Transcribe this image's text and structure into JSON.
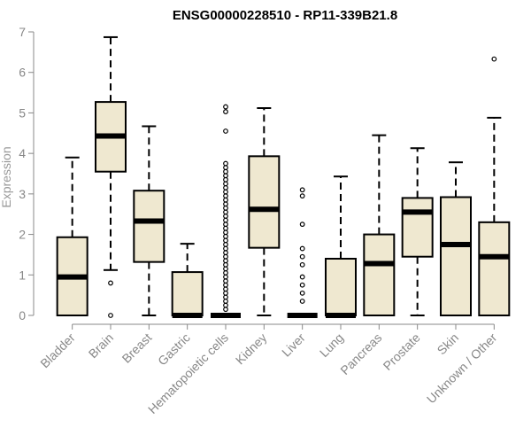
{
  "chart_data": {
    "type": "boxplot",
    "title": "ENSG00000228510 - RP11-339B21.8",
    "xlabel": "",
    "ylabel": "Expression",
    "ylim": [
      0,
      7
    ],
    "yticks": [
      0,
      1,
      2,
      3,
      4,
      5,
      6,
      7
    ],
    "box_fill": "#efe8d0",
    "categories": [
      "Bladder",
      "Brain",
      "Breast",
      "Gastric",
      "Hematopoietic cells",
      "Kidney",
      "Liver",
      "Lung",
      "Pancreas",
      "Prostate",
      "Skin",
      "Unknown / Other"
    ],
    "boxes": [
      {
        "min": 0,
        "q1": 0,
        "median": 0.95,
        "q3": 1.93,
        "max": 3.9,
        "outliers": []
      },
      {
        "min": 1.12,
        "q1": 3.55,
        "median": 4.43,
        "q3": 5.27,
        "max": 6.87,
        "outliers": [
          0.8,
          0
        ]
      },
      {
        "min": 0,
        "q1": 1.32,
        "median": 2.33,
        "q3": 3.08,
        "max": 4.67,
        "outliers": []
      },
      {
        "min": 0,
        "q1": 0,
        "median": 0,
        "q3": 1.07,
        "max": 1.77,
        "outliers": []
      },
      {
        "min": 0,
        "q1": 0,
        "median": 0,
        "q3": 0,
        "max": 0,
        "outliers": [
          5.15,
          5.03,
          4.55,
          3.75,
          3.65,
          3.55,
          3.45,
          3.35,
          3.25,
          3.15,
          3.05,
          2.95,
          2.85,
          2.75,
          2.65,
          2.55,
          2.45,
          2.35,
          2.25,
          2.15,
          2.05,
          1.95,
          1.85,
          1.75,
          1.65,
          1.55,
          1.45,
          1.35,
          1.25,
          1.15,
          1.05,
          0.95,
          0.85,
          0.75,
          0.65,
          0.55,
          0.45,
          0.35,
          0.25,
          0.15
        ]
      },
      {
        "min": 0,
        "q1": 1.67,
        "median": 2.62,
        "q3": 3.93,
        "max": 5.12,
        "outliers": []
      },
      {
        "min": 0,
        "q1": 0,
        "median": 0,
        "q3": 0,
        "max": 0,
        "outliers": [
          3.1,
          2.95,
          2.25,
          1.65,
          1.45,
          1.25,
          0.95,
          0.75,
          0.55,
          0.35
        ]
      },
      {
        "min": 0,
        "q1": 0,
        "median": 0,
        "q3": 1.4,
        "max": 3.43,
        "outliers": []
      },
      {
        "min": 0,
        "q1": 0,
        "median": 1.28,
        "q3": 2.0,
        "max": 4.45,
        "outliers": []
      },
      {
        "min": 0,
        "q1": 1.45,
        "median": 2.55,
        "q3": 2.9,
        "max": 4.13,
        "outliers": []
      },
      {
        "min": 0,
        "q1": 0,
        "median": 1.75,
        "q3": 2.92,
        "max": 3.78,
        "outliers": []
      },
      {
        "min": 0,
        "q1": 0,
        "median": 1.45,
        "q3": 2.3,
        "max": 4.88,
        "outliers": [
          6.33
        ]
      }
    ]
  }
}
